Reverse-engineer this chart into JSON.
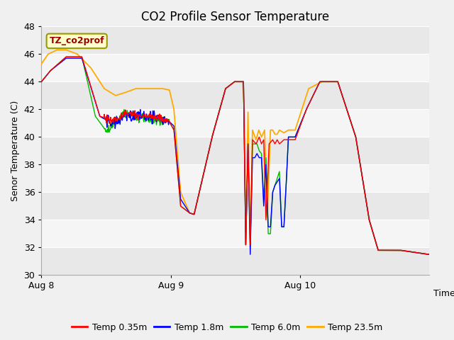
{
  "title": "CO2 Profile Sensor Temperature",
  "ylabel": "Senor Temperature (C)",
  "xlabel": "Time",
  "ylim": [
    30,
    48
  ],
  "yticks": [
    30,
    32,
    34,
    36,
    38,
    40,
    42,
    44,
    46,
    48
  ],
  "bg_color": "#f0f0f0",
  "plot_bg_light": "#f0f0f0",
  "plot_bg_dark": "#e0e0e0",
  "grid_color": "#ffffff",
  "legend_label": "TZ_co2prof",
  "series_colors": [
    "#ff0000",
    "#0000ff",
    "#00bb00",
    "#ffaa00"
  ],
  "series_labels": [
    "Temp 0.35m",
    "Temp 1.8m",
    "Temp 6.0m",
    "Temp 23.5m"
  ],
  "title_fontsize": 12,
  "label_fontsize": 9,
  "tick_fontsize": 9,
  "xtick_labels": [
    "Aug 8",
    "Aug 9",
    "Aug 10"
  ],
  "n_points": 864
}
